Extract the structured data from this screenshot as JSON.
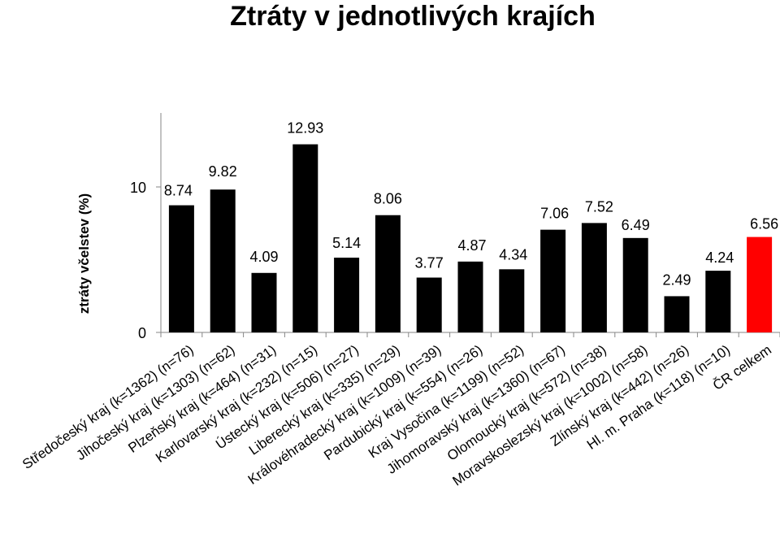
{
  "chart_data": {
    "type": "bar",
    "title": "Ztráty v jednotlivých krajích",
    "ylabel": "ztráty včelstev (%)",
    "xlabel": "",
    "ylim": [
      0,
      14.5
    ],
    "yticks": [
      0,
      10
    ],
    "grid": false,
    "legend": "none",
    "categories": [
      "Středočeský kraj (k=1362) (n=76)",
      "Jihočeský kraj (k=1303) (n=62)",
      "Plzeňský kraj (k=464) (n=31)",
      "Karlovarský kraj (k=232) (n=15)",
      "Ústecký kraj (k=506) (n=27)",
      "Liberecký kraj (k=335) (n=29)",
      "Královéhradecký kraj (k=1009) (n=39)",
      "Pardubický kraj (k=554) (n=26)",
      "Kraj Vysočina (k=1199) (n=52)",
      "Jihomoravský kraj (k=1360) (n=67)",
      "Olomoucký kraj (k=572) (n=38)",
      "Moravskoslezský kraj (k=1002) (n=58)",
      "Zlínský kraj (k=442) (n=26)",
      "Hl. m. Praha (k=118) (n=10)",
      "ČR celkem"
    ],
    "values": [
      8.74,
      9.82,
      4.09,
      12.93,
      5.14,
      8.06,
      3.77,
      4.87,
      4.34,
      7.06,
      7.52,
      6.49,
      2.49,
      4.24,
      6.56
    ],
    "value_labels": [
      "8.74",
      "9.82",
      "4.09",
      "12.93",
      "5.14",
      "8.06",
      "3.77",
      "4.87",
      "4.34",
      "7.06",
      "7.52",
      "6.49",
      "2.49",
      "4.24",
      "6.56"
    ],
    "bar_color": "#000000",
    "highlight_color": "#ff0000",
    "highlight_index": 14
  }
}
